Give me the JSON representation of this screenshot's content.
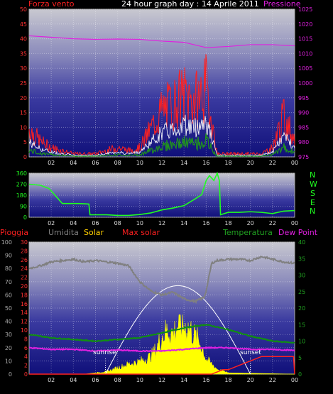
{
  "header": {
    "title": "24 hour graph day : 14 Aprile 2011",
    "left_label": "Forza vento",
    "right_label": "Pressione"
  },
  "legend": {
    "pioggia": "Pioggia",
    "umidita": "Umidita",
    "solar": "Solar",
    "max_solar": "Max solar",
    "temperatura": "Temperatura",
    "dew_point": "Dew Point"
  },
  "compass": [
    "N",
    "W",
    "S",
    "E",
    "N"
  ],
  "annotations": {
    "sunrise": "sunrise",
    "sunset": "sunset"
  },
  "colors": {
    "wind": "#ff2020",
    "gust": "#ffffff",
    "avg_wind": "#209020",
    "pressure": "#e020e0",
    "direction": "#20ff20",
    "humidity": "#808080",
    "solar": "#ffff00",
    "max_solar": "#ffffff",
    "temperature": "#109010",
    "dew_point": "#e020e0",
    "rain": "#ff2020",
    "label_umidita": "#808080",
    "label_solar": "#ffd000",
    "label_maxsolar": "#ff2020",
    "label_temp": "#20a020"
  },
  "chart_data": [
    {
      "type": "line",
      "title": "24 hour graph day : 14 Aprile 2011",
      "xlabel": "",
      "x_ticks": [
        "02",
        "04",
        "06",
        "08",
        "10",
        "12",
        "14",
        "16",
        "18",
        "20",
        "22",
        "00"
      ],
      "y_left_label": "Forza vento",
      "y_left_ticks": [
        0,
        5,
        10,
        15,
        20,
        25,
        30,
        35,
        40,
        45,
        50
      ],
      "ylim_left": [
        0,
        50
      ],
      "y_right_label": "Pressione",
      "y_right_ticks": [
        975,
        980,
        985,
        990,
        995,
        1000,
        1005,
        1010,
        1015,
        1020,
        1025
      ],
      "ylim_right": [
        975,
        1025
      ],
      "grid": true,
      "series": [
        {
          "name": "Forza vento",
          "axis": "left",
          "x": [
            0,
            1,
            2,
            3,
            4,
            5,
            6,
            7,
            8,
            9,
            10,
            11,
            12,
            13,
            14,
            15,
            16,
            17,
            18,
            19,
            20,
            21,
            22,
            23,
            24
          ],
          "values": [
            9,
            5,
            3,
            2,
            1,
            1,
            1,
            2,
            3,
            2,
            3,
            9,
            15,
            17,
            20,
            18,
            22,
            1,
            1,
            1,
            1,
            1,
            3,
            13,
            6
          ]
        },
        {
          "name": "Pressione",
          "axis": "right",
          "x": [
            0,
            2,
            4,
            6,
            8,
            10,
            12,
            14,
            16,
            18,
            20,
            22,
            24
          ],
          "values": [
            1016,
            1015.5,
            1015,
            1014.8,
            1014.9,
            1014.8,
            1014.2,
            1013.8,
            1012,
            1012.4,
            1013,
            1013,
            1012.6
          ]
        }
      ]
    },
    {
      "type": "line",
      "x_ticks": [
        "02",
        "04",
        "06",
        "08",
        "10",
        "12",
        "14",
        "16",
        "18",
        "20",
        "22",
        "00"
      ],
      "y_ticks": [
        0,
        90,
        180,
        270,
        360
      ],
      "ylim": [
        0,
        360
      ],
      "grid": true,
      "series": [
        {
          "name": "",
          "x": [
            0,
            1,
            1.8,
            2.2,
            3,
            4.5,
            5.4,
            5.5,
            7,
            8,
            9,
            10,
            11,
            12,
            13,
            14,
            15,
            15.6,
            16,
            16.3,
            16.7,
            17,
            17.2,
            17.3,
            18,
            19,
            20,
            21,
            22,
            23,
            24
          ],
          "values": [
            270,
            262,
            235,
            195,
            112,
            112,
            108,
            20,
            20,
            15,
            15,
            22,
            35,
            60,
            75,
            95,
            150,
            185,
            300,
            340,
            300,
            365,
            300,
            20,
            40,
            40,
            45,
            40,
            30,
            50,
            55
          ]
        }
      ]
    },
    {
      "type": "line",
      "x_ticks": [
        "02",
        "04",
        "06",
        "08",
        "10",
        "12",
        "14",
        "16",
        "18",
        "20",
        "22",
        "00"
      ],
      "y_ticks_umidita": [
        0,
        10,
        20,
        30,
        40,
        50,
        60,
        70,
        80,
        90,
        100
      ],
      "y_ticks_pioggia": [
        0,
        2,
        4,
        6,
        8,
        10,
        12,
        14,
        16,
        18,
        20,
        22,
        24,
        26,
        28,
        30
      ],
      "y_ticks_temperatura": [
        0,
        5,
        10,
        15,
        20,
        25,
        30,
        35,
        40
      ],
      "ylim_umidita": [
        0,
        100
      ],
      "ylim_pioggia": [
        0,
        30
      ],
      "ylim_temperatura": [
        0,
        40
      ],
      "grid": true,
      "series": [
        {
          "name": "Umidita",
          "axis": "umidita",
          "x": [
            0,
            1,
            2,
            3,
            4,
            5,
            6,
            7,
            8,
            9,
            10,
            11,
            12,
            13,
            14,
            15,
            15.8,
            16,
            16.5,
            17,
            18,
            19,
            20,
            21,
            22,
            23,
            24
          ],
          "values": [
            80,
            82,
            85,
            86,
            87,
            85,
            86,
            85,
            84,
            82,
            70,
            63,
            60,
            62,
            57,
            55,
            58,
            63,
            84,
            86,
            87,
            87,
            86,
            89,
            87,
            85,
            84
          ]
        },
        {
          "name": "Solar",
          "axis": "umidita",
          "x": [
            0,
            5,
            6,
            7,
            8,
            9,
            10,
            10.5,
            11,
            11.5,
            12,
            12.5,
            13,
            13.5,
            14,
            14.5,
            15,
            15.5,
            16,
            16.5,
            17,
            18,
            24
          ],
          "values": [
            0,
            0,
            1,
            2,
            5,
            8,
            10,
            12,
            14,
            20,
            30,
            35,
            32,
            40,
            38,
            36,
            30,
            24,
            12,
            8,
            4,
            1,
            0
          ]
        },
        {
          "name": "Max solar",
          "axis": "umidita",
          "x": [
            6.9,
            8,
            9,
            10,
            11,
            12,
            13,
            14,
            15,
            16,
            17,
            18,
            19,
            20
          ],
          "values": [
            0,
            15,
            30,
            45,
            56,
            64,
            67,
            66,
            60,
            50,
            38,
            22,
            8,
            0
          ]
        },
        {
          "name": "Temperatura",
          "axis": "temperatura",
          "x": [
            0,
            2,
            4,
            6,
            8,
            10,
            12,
            14,
            16,
            18,
            20,
            22,
            24
          ],
          "values": [
            12,
            11,
            10.5,
            10,
            10.5,
            11,
            12.5,
            14,
            15,
            13.5,
            11.5,
            10,
            9.5
          ]
        },
        {
          "name": "Dew Point",
          "axis": "temperatura",
          "x": [
            0,
            2,
            4,
            6,
            8,
            10,
            12,
            14,
            16,
            18,
            20,
            22,
            24
          ],
          "values": [
            8,
            7.5,
            7.5,
            7,
            7.3,
            7,
            7,
            7.5,
            8,
            8,
            7.5,
            7.5,
            7.2
          ]
        },
        {
          "name": "Pioggia",
          "axis": "pioggia",
          "x": [
            0,
            16.5,
            17,
            17.5,
            18,
            19,
            20,
            20.5,
            21,
            22,
            23,
            23.9,
            24
          ],
          "values": [
            0,
            0,
            0.5,
            1,
            1,
            2,
            3,
            3.5,
            4,
            4,
            4,
            4,
            0
          ]
        }
      ]
    }
  ]
}
